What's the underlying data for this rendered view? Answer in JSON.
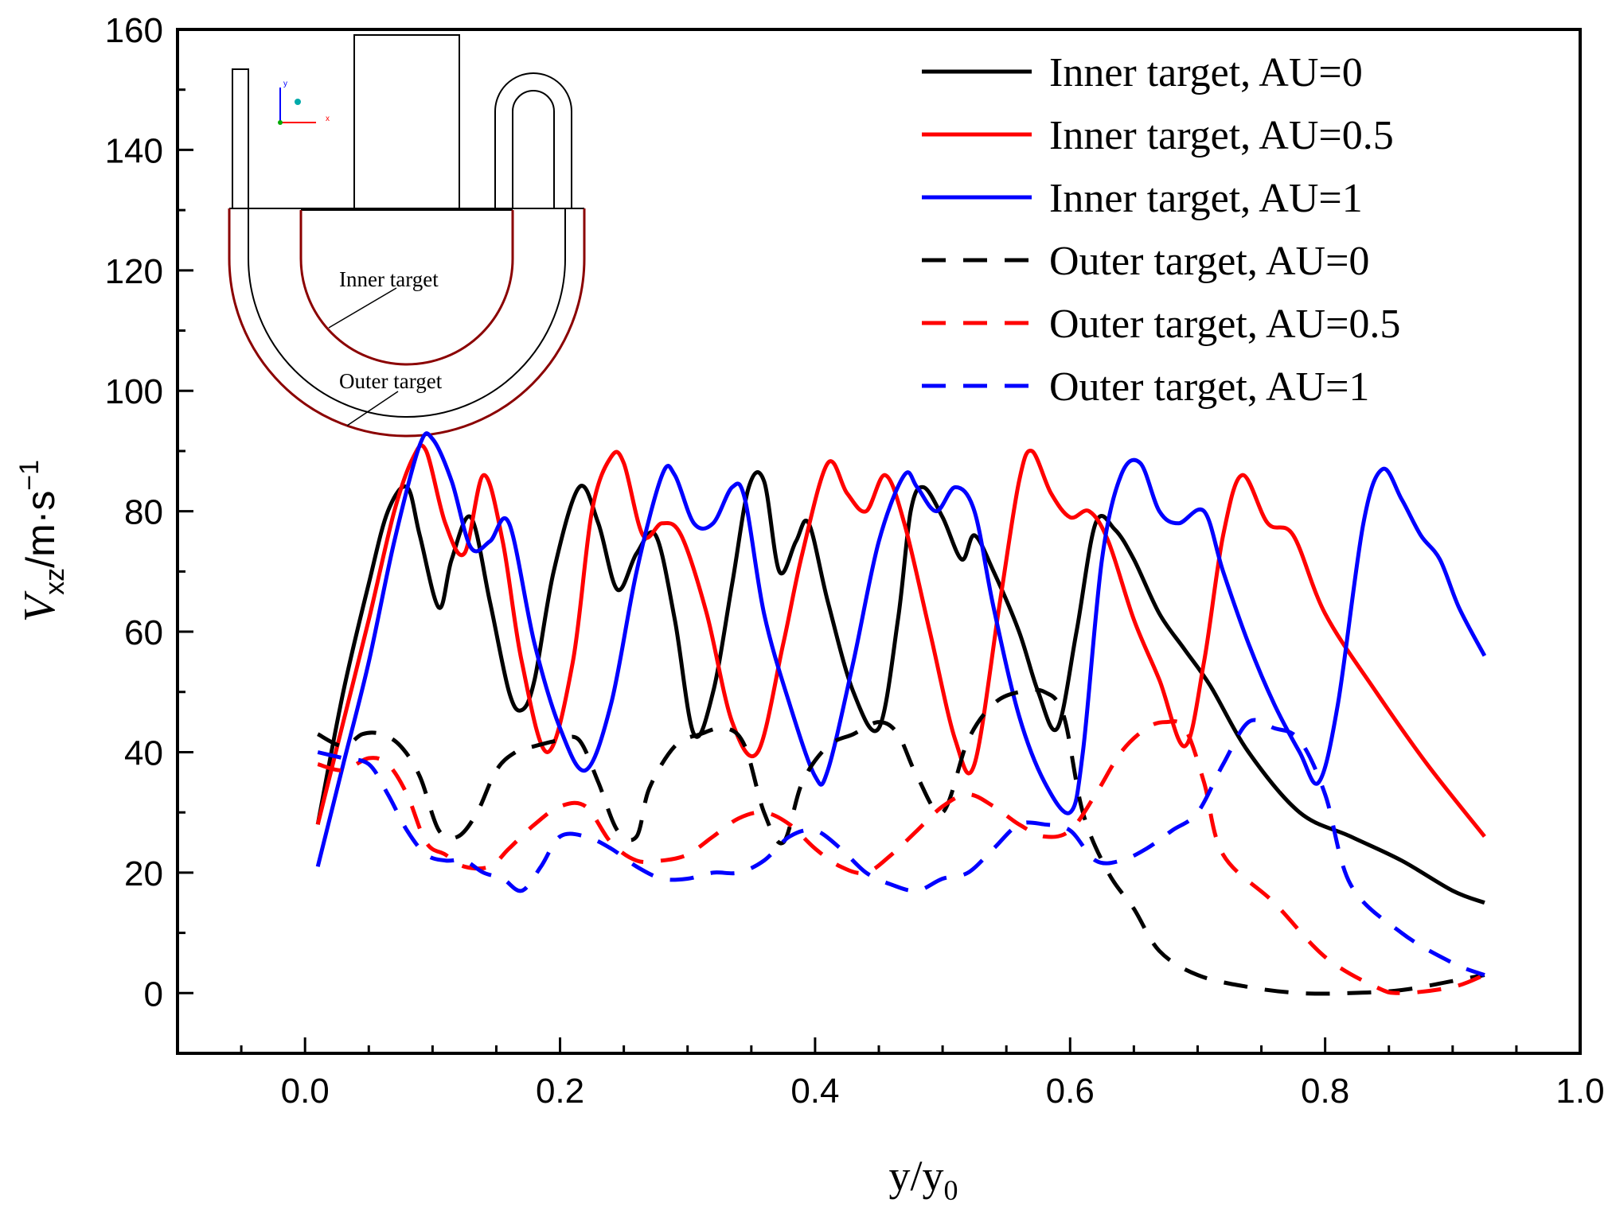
{
  "chart_data": {
    "type": "line",
    "title": "",
    "xlabel": "y/y0",
    "xlabel_parts": {
      "main": "y/y",
      "sub": "0"
    },
    "ylabel": "Vxz/m·s-1",
    "ylabel_parts": {
      "italic": "V",
      "sub": "xz",
      "units": "/m·s",
      "sup": "−1"
    },
    "xlim": [
      -0.1,
      1.0
    ],
    "ylim": [
      -10,
      160
    ],
    "xticks": [
      0.0,
      0.2,
      0.4,
      0.6,
      0.8,
      1.0
    ],
    "xtick_labels": [
      "0.0",
      "0.2",
      "0.4",
      "0.6",
      "0.8",
      "1.0"
    ],
    "yticks": [
      0,
      20,
      40,
      60,
      80,
      100,
      120,
      140,
      160
    ],
    "ytick_labels": [
      "0",
      "20",
      "40",
      "60",
      "80",
      "100",
      "120",
      "140",
      "160"
    ],
    "x_minor_step": 0.05,
    "y_minor_step": 10,
    "grid": false,
    "legend_position": "top-right",
    "series": [
      {
        "name": "Inner target, AU=0",
        "color": "#000000",
        "dash": false,
        "x": [
          0.01,
          0.03,
          0.05,
          0.065,
          0.08,
          0.09,
          0.105,
          0.115,
          0.13,
          0.145,
          0.16,
          0.17,
          0.18,
          0.195,
          0.215,
          0.23,
          0.245,
          0.26,
          0.275,
          0.29,
          0.305,
          0.32,
          0.335,
          0.348,
          0.36,
          0.372,
          0.385,
          0.395,
          0.41,
          0.43,
          0.45,
          0.465,
          0.475,
          0.485,
          0.5,
          0.515,
          0.525,
          0.54,
          0.56,
          0.575,
          0.59,
          0.605,
          0.62,
          0.635,
          0.65,
          0.67,
          0.69,
          0.71,
          0.74,
          0.78,
          0.82,
          0.86,
          0.9,
          0.925
        ],
        "values": [
          28,
          50,
          68,
          80,
          84,
          76,
          64,
          72,
          79,
          65,
          50,
          47,
          52,
          70,
          84,
          78,
          67,
          73,
          76,
          62,
          43,
          50,
          68,
          84,
          85,
          70,
          75,
          78,
          65,
          50,
          44,
          62,
          80,
          84,
          79,
          72,
          76,
          70,
          60,
          50,
          44,
          60,
          78,
          77,
          72,
          63,
          57,
          51,
          40,
          30,
          26,
          22,
          17,
          15
        ]
      },
      {
        "name": "Inner target, AU=0.5",
        "color": "#ff0000",
        "dash": false,
        "x": [
          0.01,
          0.03,
          0.05,
          0.07,
          0.085,
          0.095,
          0.11,
          0.125,
          0.14,
          0.155,
          0.17,
          0.19,
          0.21,
          0.225,
          0.24,
          0.25,
          0.265,
          0.28,
          0.295,
          0.315,
          0.335,
          0.355,
          0.375,
          0.39,
          0.41,
          0.425,
          0.44,
          0.455,
          0.47,
          0.49,
          0.51,
          0.525,
          0.545,
          0.56,
          0.57,
          0.585,
          0.6,
          0.615,
          0.63,
          0.65,
          0.67,
          0.69,
          0.705,
          0.72,
          0.735,
          0.755,
          0.775,
          0.8,
          0.84,
          0.88,
          0.925
        ],
        "values": [
          28,
          45,
          62,
          80,
          89,
          90,
          78,
          73,
          86,
          75,
          55,
          40,
          55,
          80,
          89,
          88,
          76,
          78,
          76,
          63,
          45,
          40,
          58,
          73,
          88,
          83,
          80,
          86,
          78,
          60,
          42,
          38,
          65,
          85,
          90,
          83,
          79,
          80,
          75,
          62,
          52,
          41,
          55,
          76,
          86,
          78,
          76,
          63,
          50,
          38,
          26
        ]
      },
      {
        "name": "Inner target, AU=1",
        "color": "#0000ff",
        "dash": false,
        "x": [
          0.01,
          0.03,
          0.05,
          0.07,
          0.09,
          0.1,
          0.115,
          0.13,
          0.145,
          0.16,
          0.18,
          0.2,
          0.22,
          0.24,
          0.26,
          0.28,
          0.29,
          0.305,
          0.32,
          0.335,
          0.345,
          0.36,
          0.38,
          0.4,
          0.41,
          0.43,
          0.45,
          0.47,
          0.48,
          0.495,
          0.51,
          0.525,
          0.54,
          0.56,
          0.58,
          0.6,
          0.61,
          0.625,
          0.64,
          0.655,
          0.67,
          0.685,
          0.705,
          0.72,
          0.74,
          0.76,
          0.78,
          0.795,
          0.81,
          0.83,
          0.845,
          0.86,
          0.875,
          0.89,
          0.905,
          0.925
        ],
        "values": [
          21,
          38,
          55,
          75,
          91,
          92,
          85,
          74,
          75,
          78,
          58,
          44,
          37,
          48,
          70,
          86,
          86,
          78,
          78,
          84,
          82,
          63,
          48,
          36,
          37,
          55,
          75,
          86,
          84,
          80,
          84,
          80,
          64,
          46,
          35,
          30,
          40,
          72,
          86,
          88,
          80,
          78,
          80,
          70,
          58,
          48,
          40,
          35,
          48,
          78,
          87,
          82,
          76,
          72,
          64,
          56
        ]
      },
      {
        "name": "Outer target, AU=0",
        "color": "#000000",
        "dash": true,
        "x": [
          0.01,
          0.03,
          0.045,
          0.06,
          0.075,
          0.09,
          0.105,
          0.12,
          0.135,
          0.15,
          0.165,
          0.18,
          0.2,
          0.215,
          0.23,
          0.245,
          0.26,
          0.27,
          0.29,
          0.31,
          0.33,
          0.345,
          0.36,
          0.375,
          0.39,
          0.41,
          0.43,
          0.45,
          0.465,
          0.48,
          0.5,
          0.52,
          0.54,
          0.56,
          0.58,
          0.595,
          0.61,
          0.63,
          0.65,
          0.67,
          0.7,
          0.74,
          0.78,
          0.82,
          0.86,
          0.9,
          0.925
        ],
        "values": [
          43,
          41,
          43,
          43,
          41,
          36,
          27,
          26,
          30,
          37,
          40,
          41,
          42,
          42,
          35,
          27,
          26,
          34,
          41,
          43,
          44,
          41,
          30,
          25,
          35,
          41,
          43,
          45,
          43,
          36,
          30,
          42,
          48,
          50,
          50,
          46,
          30,
          20,
          14,
          7,
          3,
          1,
          0,
          0,
          0.5,
          2,
          3
        ]
      },
      {
        "name": "Outer target, AU=0.5",
        "color": "#ff0000",
        "dash": true,
        "x": [
          0.01,
          0.03,
          0.05,
          0.065,
          0.08,
          0.095,
          0.11,
          0.125,
          0.145,
          0.16,
          0.18,
          0.2,
          0.22,
          0.24,
          0.26,
          0.28,
          0.3,
          0.32,
          0.34,
          0.36,
          0.38,
          0.4,
          0.42,
          0.44,
          0.46,
          0.48,
          0.5,
          0.52,
          0.54,
          0.56,
          0.58,
          0.6,
          0.62,
          0.64,
          0.66,
          0.675,
          0.69,
          0.705,
          0.72,
          0.76,
          0.8,
          0.84,
          0.86,
          0.9,
          0.925
        ],
        "values": [
          38,
          37,
          39,
          38,
          33,
          25,
          23,
          21,
          21,
          24,
          28,
          31,
          31,
          25,
          22,
          22,
          23,
          26,
          29,
          30,
          28,
          24,
          21,
          20,
          23,
          27,
          31,
          33,
          31,
          28,
          26,
          27,
          33,
          40,
          44,
          45,
          44,
          35,
          23,
          15,
          6,
          1,
          0,
          1,
          3
        ]
      },
      {
        "name": "Outer target, AU=1",
        "color": "#0000ff",
        "dash": true,
        "x": [
          0.01,
          0.03,
          0.05,
          0.065,
          0.08,
          0.095,
          0.11,
          0.125,
          0.14,
          0.155,
          0.17,
          0.185,
          0.2,
          0.22,
          0.24,
          0.26,
          0.28,
          0.3,
          0.32,
          0.34,
          0.36,
          0.38,
          0.4,
          0.42,
          0.44,
          0.46,
          0.48,
          0.5,
          0.52,
          0.54,
          0.56,
          0.58,
          0.6,
          0.62,
          0.64,
          0.66,
          0.68,
          0.7,
          0.72,
          0.74,
          0.76,
          0.78,
          0.8,
          0.82,
          0.86,
          0.9,
          0.925
        ],
        "values": [
          40,
          39,
          38,
          33,
          27,
          23,
          22,
          22,
          20,
          19,
          17,
          21,
          26,
          26,
          24,
          21,
          19,
          19,
          20,
          20,
          22,
          26,
          27,
          24,
          20,
          18,
          17,
          19,
          20,
          24,
          28,
          28,
          27,
          22,
          22,
          24,
          27,
          30,
          38,
          45,
          44,
          42,
          33,
          18,
          10,
          5,
          3
        ]
      }
    ]
  },
  "inset": {
    "label_inner": "Inner target",
    "label_outer": "Outer target",
    "axis_x": "x",
    "axis_y": "y",
    "axis_color_x": "#ff0000",
    "axis_color_y": "#0000ff",
    "target_color": "#8b0000"
  }
}
